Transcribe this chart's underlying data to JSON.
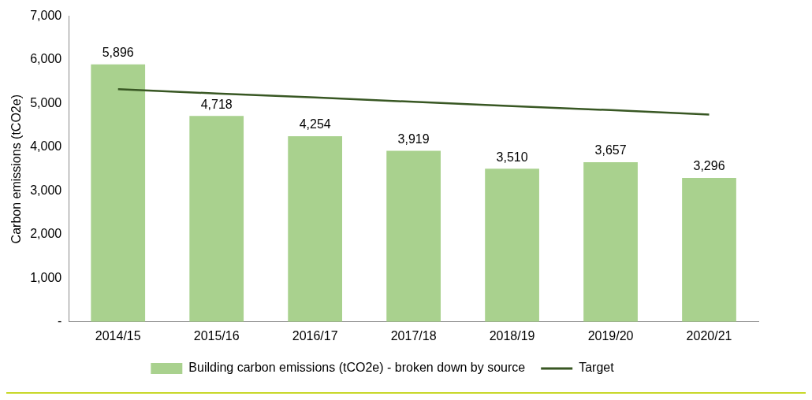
{
  "chart_data": {
    "type": "bar",
    "ylabel": "Carbon emissions (tCO2e)",
    "categories": [
      "2014/15",
      "2015/16",
      "2016/17",
      "2017/18",
      "2018/19",
      "2019/20",
      "2020/21"
    ],
    "series": [
      {
        "name": "Building carbon emissions (tCO2e) - broken down by source",
        "color": "#a9d18e",
        "values": [
          5896,
          4718,
          4254,
          3919,
          3510,
          3657,
          3296
        ],
        "value_labels": [
          "5,896",
          "4,718",
          "4,254",
          "3,919",
          "3,510",
          "3,657",
          "3,296"
        ]
      },
      {
        "name": "Target",
        "type": "line",
        "color": "#385723",
        "values": [
          5330,
          5230,
          5140,
          5040,
          4940,
          4850,
          4750
        ]
      }
    ],
    "ylim": [
      0,
      7000
    ],
    "yticks": [
      {
        "value": 0,
        "label": "-"
      },
      {
        "value": 1000,
        "label": "1,000"
      },
      {
        "value": 2000,
        "label": "2,000"
      },
      {
        "value": 3000,
        "label": "3,000"
      },
      {
        "value": 4000,
        "label": "4,000"
      },
      {
        "value": 5000,
        "label": "5,000"
      },
      {
        "value": 6000,
        "label": "6,000"
      },
      {
        "value": 7000,
        "label": "7,000"
      }
    ],
    "grid": false,
    "legend": "bottom",
    "marker": "none"
  }
}
